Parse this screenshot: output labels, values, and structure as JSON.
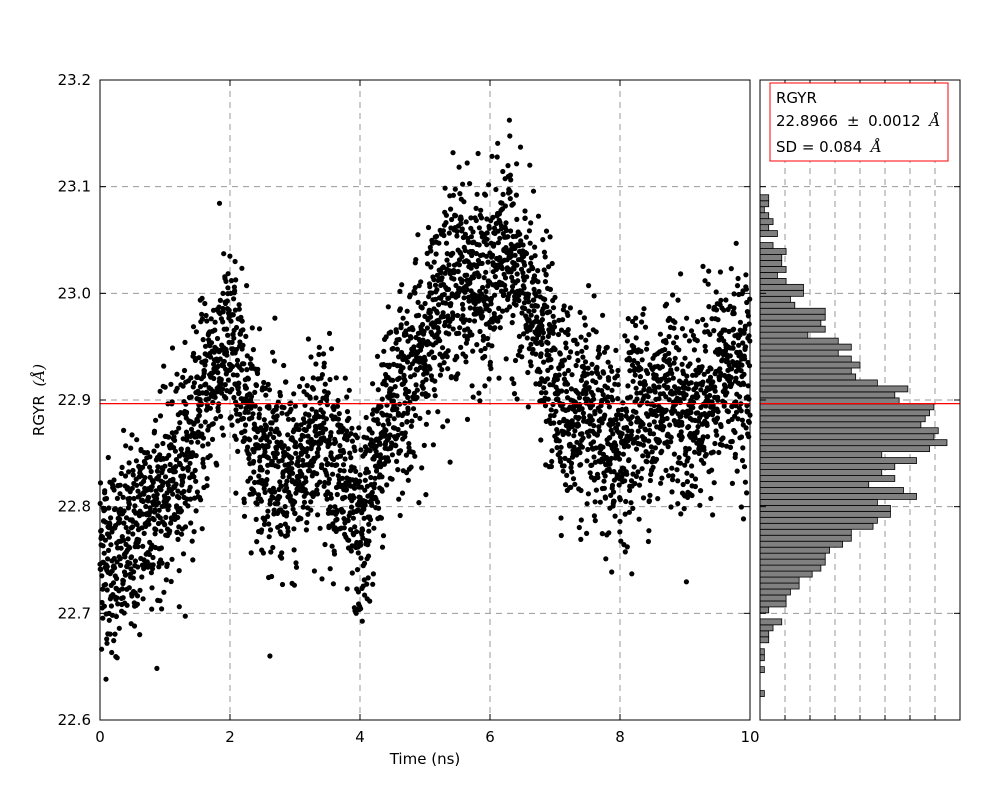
{
  "chart_data": [
    {
      "type": "scatter",
      "xlabel": "Time (ns)",
      "ylabel": "RGYR",
      "ylabel_unit": "(Å)",
      "xlim": [
        0,
        10
      ],
      "ylim": [
        22.6,
        23.2
      ],
      "x_ticks": [
        "0",
        "2",
        "4",
        "6",
        "8",
        "10"
      ],
      "y_ticks": [
        "22.6",
        "22.7",
        "22.8",
        "22.9",
        "23.0",
        "23.1",
        "23.2"
      ],
      "grid": true,
      "grid_style": "dashed",
      "point_color": "#000000",
      "mean_line": {
        "value": 22.8966,
        "color": "#ff0000"
      },
      "trend": {
        "x": [
          0.0,
          0.25,
          0.5,
          0.75,
          1.0,
          1.25,
          1.5,
          1.75,
          2.0,
          2.25,
          2.5,
          2.75,
          3.0,
          3.25,
          3.5,
          3.75,
          4.0,
          4.25,
          4.5,
          4.75,
          5.0,
          5.25,
          5.5,
          5.75,
          6.0,
          6.25,
          6.5,
          6.75,
          7.0,
          7.25,
          7.5,
          7.75,
          8.0,
          8.25,
          8.5,
          8.75,
          9.0,
          9.25,
          9.5,
          9.75,
          10.0
        ],
        "y": [
          22.76,
          22.75,
          22.77,
          22.8,
          22.81,
          22.84,
          22.88,
          22.93,
          22.95,
          22.9,
          22.85,
          22.83,
          22.82,
          22.87,
          22.86,
          22.82,
          22.77,
          22.84,
          22.9,
          22.92,
          22.95,
          23.0,
          23.02,
          23.01,
          23.0,
          23.05,
          23.0,
          22.97,
          22.92,
          22.89,
          22.88,
          22.86,
          22.85,
          22.9,
          22.88,
          22.92,
          22.88,
          22.9,
          22.92,
          22.93,
          22.92
        ]
      },
      "spread": 0.045,
      "n_points": 4000
    },
    {
      "type": "bar",
      "orientation": "horizontal",
      "ylim": [
        22.6,
        23.2
      ],
      "bin_edges_start": 22.622,
      "bin_width": 0.0056,
      "counts": [
        1,
        0,
        0,
        0,
        1,
        0,
        1,
        1,
        0,
        2,
        2,
        3,
        5,
        0,
        2,
        6,
        6,
        7,
        9,
        9,
        12,
        14,
        15,
        15,
        16,
        19,
        21,
        21,
        26,
        27,
        30,
        30,
        27,
        36,
        33,
        25,
        31,
        28,
        31,
        36,
        28,
        39,
        43,
        40,
        41,
        37,
        38,
        39,
        40,
        32,
        31,
        34,
        27,
        22,
        21,
        23,
        21,
        18,
        21,
        18,
        11,
        15,
        14,
        15,
        15,
        8,
        7,
        10,
        10,
        6,
        4,
        6,
        5,
        5,
        6,
        3,
        0,
        4,
        2,
        3,
        2,
        1,
        2,
        2,
        0,
        0,
        0,
        0,
        0,
        0,
        0
      ],
      "count_max": 46,
      "bar_color": "#808080",
      "edge_color": "#000000",
      "mean_line": {
        "value": 22.8966,
        "color": "#ff0000"
      },
      "legend": {
        "title": "RGYR",
        "line2_value": "22.8966",
        "line2_sep": "±",
        "line2_err": "0.0012",
        "line3_prefix": "SD = 0.084",
        "unit": "Å",
        "border_color": "#ff0000",
        "placement": "top-right"
      }
    }
  ]
}
